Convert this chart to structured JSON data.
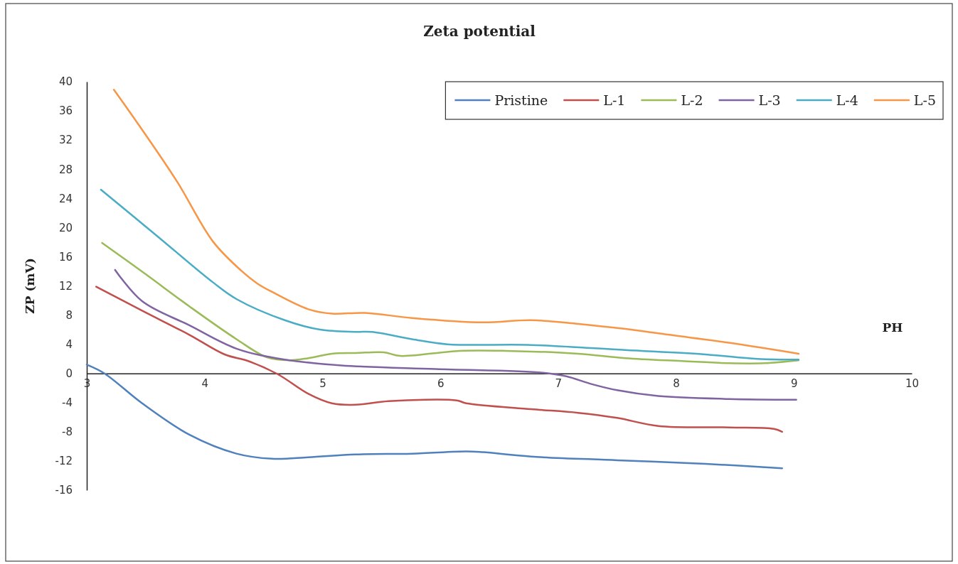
{
  "chart_data": {
    "type": "line",
    "title": "Zeta potential",
    "xlabel": "PH",
    "ylabel": "ZP (mV)",
    "xlim": [
      3,
      10
    ],
    "xticks": [
      3,
      4,
      5,
      6,
      7,
      8,
      9,
      10
    ],
    "ylim": [
      -16,
      40
    ],
    "yticks": [
      -16,
      -12,
      -8,
      -4,
      0,
      4,
      8,
      12,
      16,
      20,
      24,
      28,
      32,
      36,
      40
    ],
    "grid": false,
    "legend": "top right",
    "series": [
      {
        "name": "Pristine",
        "color": "#4f81bd",
        "x": [
          3.0,
          3.15,
          3.47,
          3.87,
          4.27,
          4.57,
          4.88,
          5.28,
          5.76,
          6.22,
          6.36,
          6.77,
          7.5,
          8.25,
          8.9
        ],
        "values": [
          1.2,
          0.0,
          -4.1,
          -8.4,
          -11.0,
          -11.7,
          -11.5,
          -11.1,
          -11.0,
          -10.7,
          -10.8,
          -11.4,
          -11.9,
          -12.4,
          -13.0
        ]
      },
      {
        "name": "L-1",
        "color": "#c0504d",
        "x": [
          3.08,
          3.47,
          3.87,
          4.17,
          4.37,
          4.62,
          4.88,
          5.08,
          5.28,
          5.56,
          6.14,
          6.22,
          6.77,
          7.17,
          7.5,
          7.85,
          8.45,
          8.83,
          8.9
        ],
        "values": [
          11.9,
          8.6,
          5.3,
          2.6,
          1.7,
          -0.1,
          -2.8,
          -4.1,
          -4.3,
          -3.8,
          -3.7,
          -4.1,
          -4.9,
          -5.4,
          -6.1,
          -7.2,
          -7.4,
          -7.6,
          -8.0
        ]
      },
      {
        "name": "L-2",
        "color": "#9bbb59",
        "x": [
          3.13,
          3.5,
          3.87,
          4.27,
          4.53,
          4.72,
          4.88,
          5.08,
          5.28,
          5.52,
          5.66,
          6.16,
          6.56,
          7.17,
          7.57,
          8.05,
          8.45,
          8.75,
          9.04
        ],
        "values": [
          17.9,
          13.6,
          9.2,
          4.7,
          2.2,
          1.8,
          2.1,
          2.7,
          2.8,
          2.9,
          2.4,
          3.1,
          3.1,
          2.7,
          2.1,
          1.7,
          1.4,
          1.4,
          1.8
        ]
      },
      {
        "name": "L-3",
        "color": "#8064a2",
        "x": [
          3.24,
          3.47,
          3.87,
          4.27,
          4.68,
          5.16,
          5.96,
          6.87,
          7.07,
          7.27,
          7.5,
          7.85,
          8.45,
          9.02
        ],
        "values": [
          14.2,
          9.9,
          6.6,
          3.4,
          1.9,
          1.1,
          0.6,
          0.1,
          -0.4,
          -1.4,
          -2.3,
          -3.1,
          -3.5,
          -3.6
        ]
      },
      {
        "name": "L-4",
        "color": "#4bacc6",
        "x": [
          3.12,
          3.6,
          4.07,
          4.27,
          4.68,
          4.98,
          5.28,
          5.42,
          5.76,
          6.06,
          6.77,
          7.57,
          8.25,
          8.69,
          9.04
        ],
        "values": [
          25.2,
          18.8,
          12.5,
          10.2,
          7.3,
          6.0,
          5.7,
          5.7,
          4.7,
          4.0,
          3.9,
          3.2,
          2.6,
          2.0,
          1.9
        ]
      },
      {
        "name": "L-5",
        "color": "#f79646",
        "x": [
          3.23,
          3.47,
          3.77,
          4.07,
          4.31,
          4.45,
          4.57,
          4.88,
          5.08,
          5.36,
          5.76,
          6.36,
          6.77,
          7.17,
          7.57,
          7.85,
          8.45,
          9.04
        ],
        "values": [
          38.9,
          33.4,
          26.2,
          18.1,
          14.1,
          12.3,
          11.2,
          8.8,
          8.2,
          8.3,
          7.6,
          7.0,
          7.3,
          6.8,
          6.1,
          5.5,
          4.2,
          2.7
        ]
      }
    ]
  }
}
